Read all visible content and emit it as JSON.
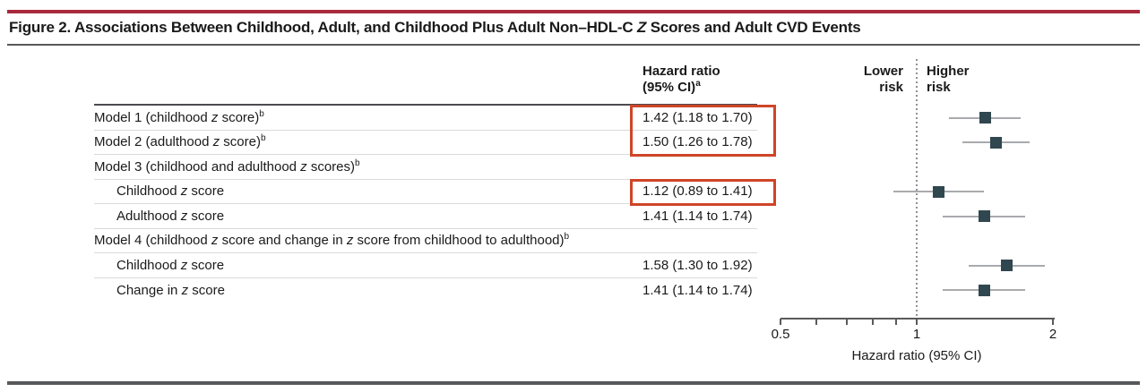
{
  "figure": {
    "title": "Figure 2. Associations Between Childhood, Adult, and Childhood Plus Adult Non–HDL-C *Z* Scores and Adult CVD Events"
  },
  "table": {
    "value_header": "Hazard ratio\n(95% CI)^a"
  },
  "plot": {
    "lower_label": "Lower\nrisk",
    "higher_label": "Higher\nrisk",
    "xlabel": "Hazard ratio (95% CI)"
  },
  "chart_data": {
    "type": "forest",
    "scale": "log",
    "xlim": [
      0.5,
      2
    ],
    "reference_line": 1,
    "minor_ticks": [
      0.5,
      0.6,
      0.7,
      0.8,
      0.9,
      1,
      2
    ],
    "labeled_ticks": [
      {
        "v": 0.5,
        "t": "0.5"
      },
      {
        "v": 1,
        "t": "1"
      },
      {
        "v": 2,
        "t": "2"
      }
    ],
    "xlabel": "Hazard ratio (95% CI)",
    "rows": [
      {
        "label": "Model 1 (childhood *z* score)^b",
        "indent": 0,
        "hr": 1.42,
        "lo": 1.18,
        "hi": 1.7,
        "text": "1.42 (1.18 to 1.70)"
      },
      {
        "label": "Model 2 (adulthood *z* score)^b",
        "indent": 0,
        "hr": 1.5,
        "lo": 1.26,
        "hi": 1.78,
        "text": "1.50 (1.26 to 1.78)"
      },
      {
        "label": "Model 3 (childhood and adulthood *z* scores)^b",
        "indent": 0,
        "hr": null,
        "lo": null,
        "hi": null,
        "text": ""
      },
      {
        "label": "Childhood *z* score",
        "indent": 1,
        "hr": 1.12,
        "lo": 0.89,
        "hi": 1.41,
        "text": "1.12 (0.89 to 1.41)"
      },
      {
        "label": "Adulthood *z* score",
        "indent": 1,
        "hr": 1.41,
        "lo": 1.14,
        "hi": 1.74,
        "text": "1.41 (1.14 to 1.74)"
      },
      {
        "label": "Model 4 (childhood *z* score and change in *z* score from childhood to adulthood)^b",
        "indent": 0,
        "hr": null,
        "lo": null,
        "hi": null,
        "text": ""
      },
      {
        "label": "Childhood *z* score",
        "indent": 1,
        "hr": 1.58,
        "lo": 1.3,
        "hi": 1.92,
        "text": "1.58 (1.30 to 1.92)"
      },
      {
        "label": "Change in *z* score",
        "indent": 1,
        "hr": 1.41,
        "lo": 1.14,
        "hi": 1.74,
        "text": "1.41 (1.14 to 1.74)"
      }
    ],
    "highlight_boxes": [
      {
        "start_row": 0,
        "end_row": 1
      },
      {
        "start_row": 3,
        "end_row": 3
      }
    ]
  },
  "colors": {
    "banner_crimson": "#a8293c",
    "rule_dark": "#57585a",
    "header_rule": "#4b4c4e",
    "row_separator": "#dadada",
    "highlight_red": "#cf4527",
    "marker": "#31474f",
    "ci_line": "#a8aaad",
    "axis": "#595a5c",
    "ref_dots": "#8e9093",
    "text": "#1a1a1a"
  }
}
